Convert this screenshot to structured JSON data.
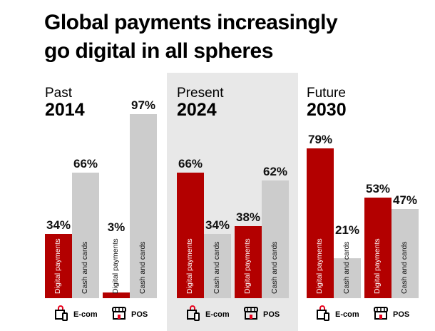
{
  "title_line1": "Global payments increasingly",
  "title_line2": "go digital in all spheres",
  "chart_data": {
    "type": "bar",
    "title": "Global payments increasingly go digital in all spheres",
    "unit": "%",
    "ylim": [
      0,
      100
    ],
    "colors": {
      "Digital payments": "#b30000",
      "Cash and cards": "#cccccc"
    },
    "series_labels": [
      "Digital payments",
      "Cash and cards"
    ],
    "groups": [
      {
        "period": "Past",
        "year": "2014",
        "highlighted": false,
        "categories": [
          {
            "name": "E-com",
            "icon": "shopping-bag-phone-icon",
            "digital": 34,
            "cash": 66
          },
          {
            "name": "POS",
            "icon": "storefront-icon",
            "digital": 3,
            "cash": 97
          }
        ]
      },
      {
        "period": "Present",
        "year": "2024",
        "highlighted": true,
        "categories": [
          {
            "name": "E-com",
            "icon": "shopping-bag-phone-icon",
            "digital": 66,
            "cash": 34
          },
          {
            "name": "POS",
            "icon": "storefront-icon",
            "digital": 38,
            "cash": 62
          }
        ]
      },
      {
        "period": "Future",
        "year": "2030",
        "highlighted": false,
        "categories": [
          {
            "name": "E-com",
            "icon": "shopping-bag-phone-icon",
            "digital": 79,
            "cash": 21
          },
          {
            "name": "POS",
            "icon": "storefront-icon",
            "digital": 53,
            "cash": 47
          }
        ]
      }
    ]
  }
}
